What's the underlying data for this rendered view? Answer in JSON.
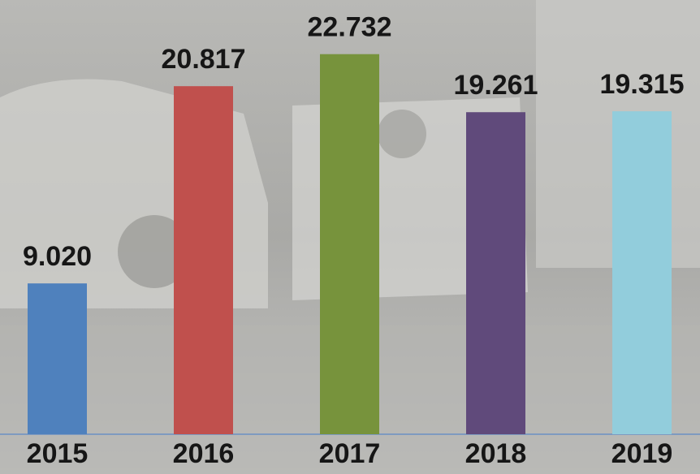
{
  "chart_data": {
    "type": "bar",
    "categories": [
      "2015",
      "2016",
      "2017",
      "2018",
      "2019"
    ],
    "values": [
      9.02,
      20.817,
      22.732,
      19.261,
      19.315
    ],
    "value_labels": [
      "9.020",
      "20.817",
      "22.732",
      "19.261",
      "19.315"
    ],
    "colors": [
      "#4f81bd",
      "#c0504d",
      "#77933c",
      "#604a7b",
      "#92cddc"
    ]
  }
}
